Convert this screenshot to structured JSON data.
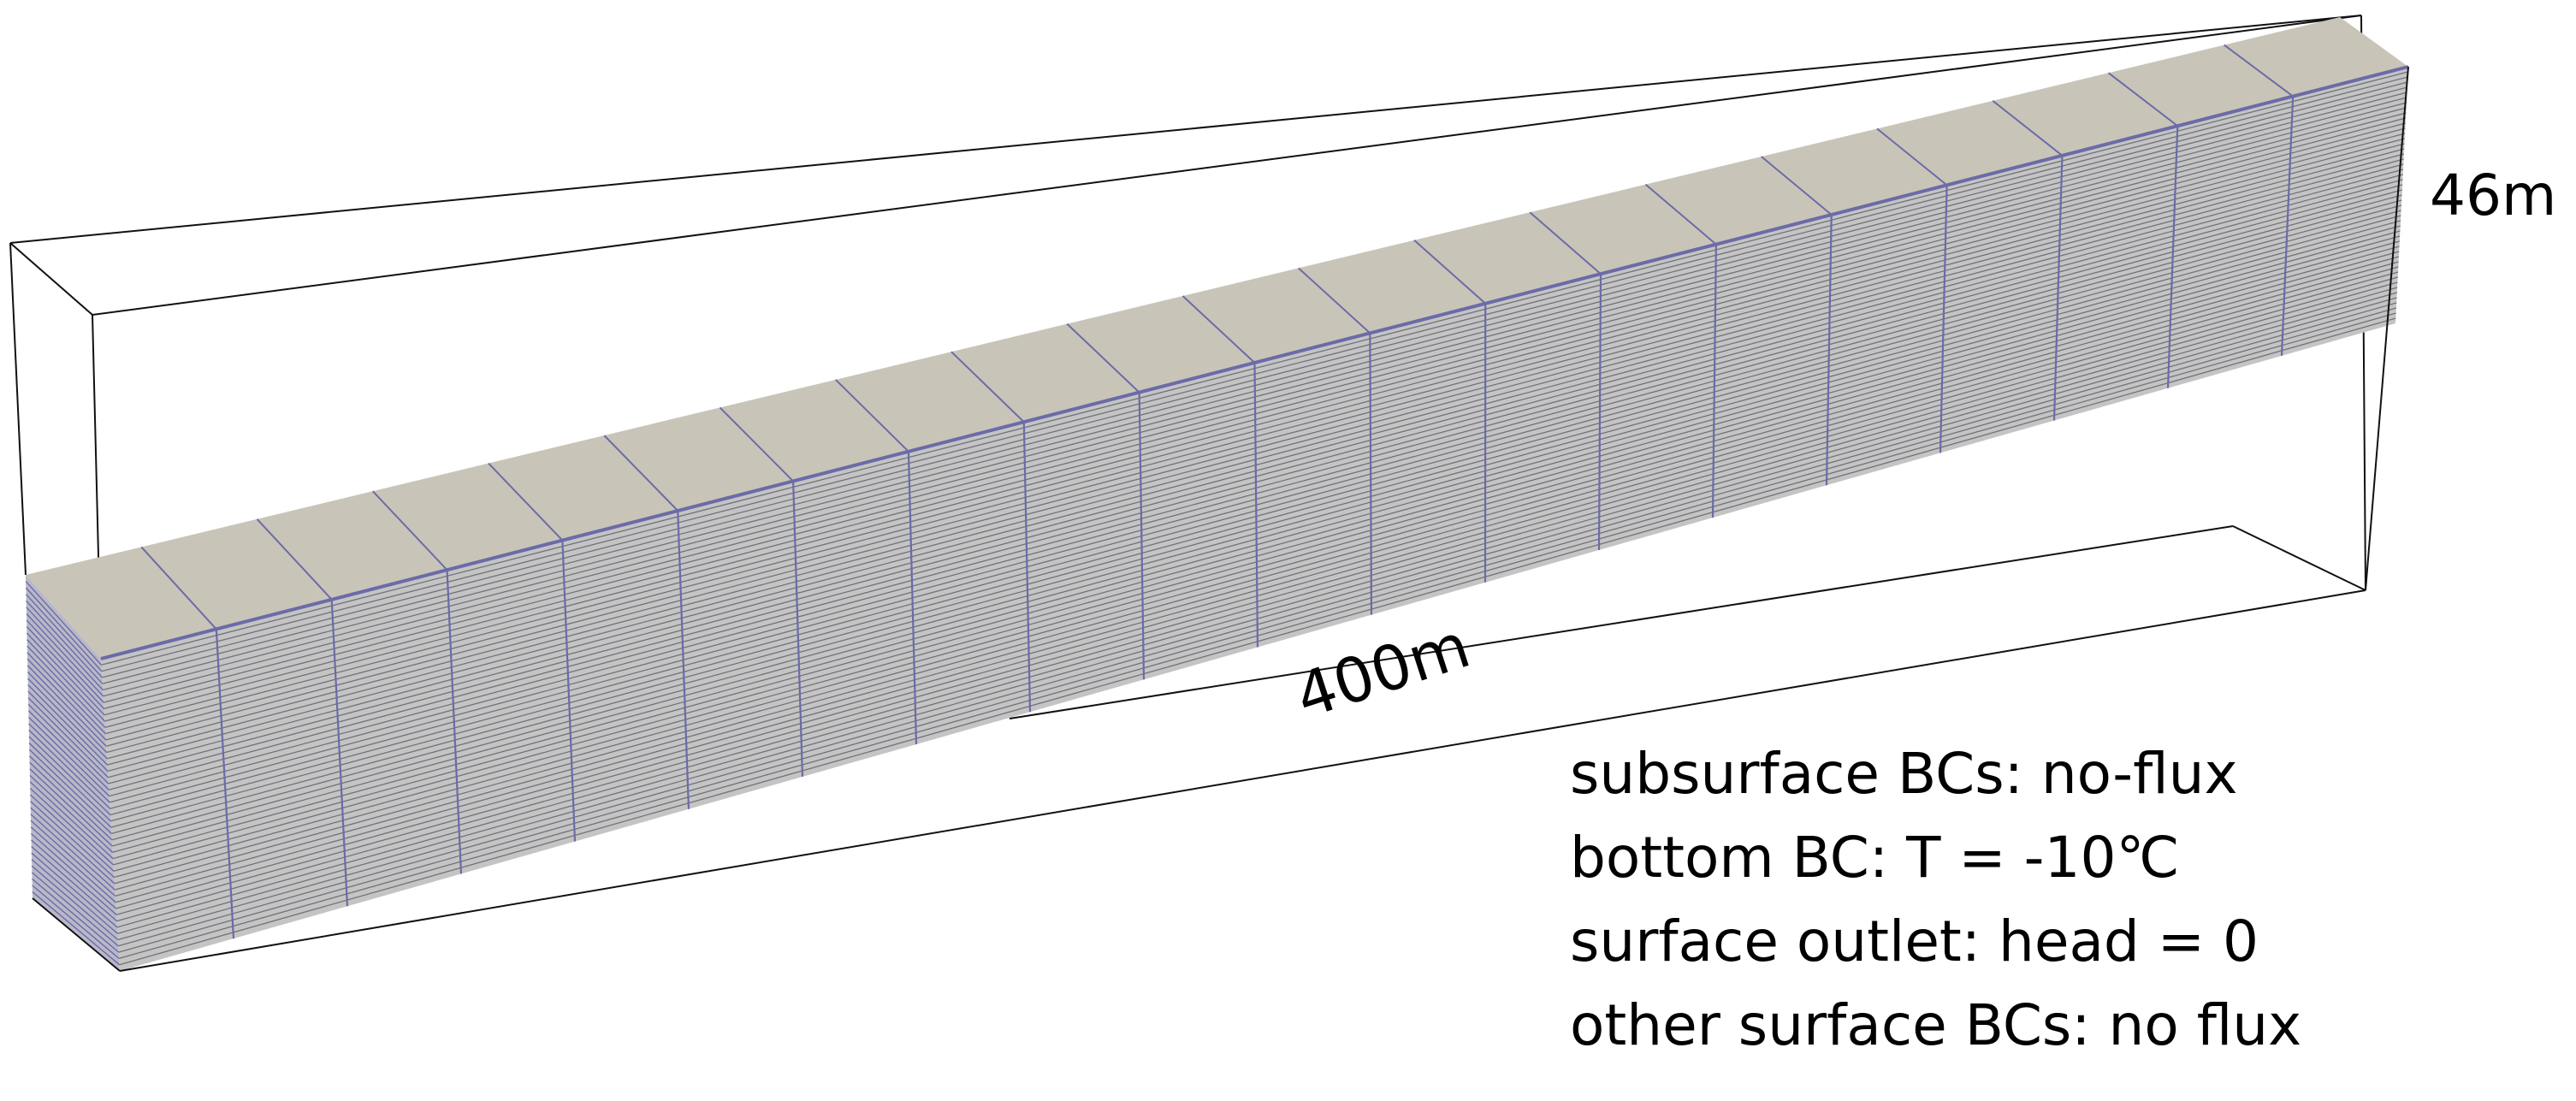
{
  "colors": {
    "top_face": "#c8c5b8",
    "side_face": "#c4c4c4",
    "mesh_line": "#6b6ba8",
    "outline": "#111111",
    "text": "#000000"
  },
  "dimensions": {
    "height_label": "46m",
    "length_label": "400m"
  },
  "mesh": {
    "columns": 20,
    "layers": 50
  },
  "boundary_conditions": [
    "subsurface BCs: no-flux",
    "bottom BC: T = -10℃",
    "surface outlet: head = 0",
    "other surface BCs: no flux"
  ]
}
